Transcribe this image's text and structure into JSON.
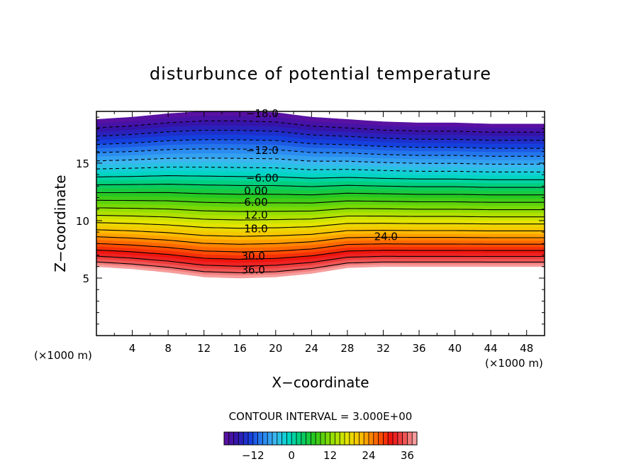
{
  "chart_data": {
    "type": "heatmap",
    "title": "disturbunce of potential temperature",
    "xlabel": "X−coordinate",
    "ylabel": "Z−coordinate",
    "x_unit_left": "(×1000 m)",
    "x_unit_right": "(×1000 m)",
    "xlim": [
      0,
      50
    ],
    "ylim": [
      0,
      19.5
    ],
    "x_ticks": [
      "4",
      "8",
      "12",
      "16",
      "20",
      "24",
      "28",
      "32",
      "36",
      "40",
      "44",
      "48"
    ],
    "y_ticks": [
      "5",
      "10",
      "15"
    ],
    "grid": false,
    "contour_interval_text": "CONTOUR INTERVAL = 3.000E+00",
    "contour_interval": 3.0,
    "value_range": [
      -21,
      39
    ],
    "colorbar": {
      "ticks": [
        "−12",
        "0",
        "12",
        "24",
        "36"
      ],
      "tick_values": [
        -12,
        0,
        12,
        24,
        36
      ]
    },
    "contour_labels": [
      {
        "text": "−18.0",
        "value": -18,
        "x": 18.5,
        "z": 19.3
      },
      {
        "text": "−12.0",
        "value": -12,
        "x": 18.5,
        "z": 16.1
      },
      {
        "text": "−6.00",
        "value": -6,
        "x": 18.5,
        "z": 13.7
      },
      {
        "text": "0.00",
        "value": 0,
        "x": 17.8,
        "z": 12.6
      },
      {
        "text": "6.00",
        "value": 6,
        "x": 17.8,
        "z": 11.6
      },
      {
        "text": "12.0",
        "value": 12,
        "x": 17.8,
        "z": 10.5
      },
      {
        "text": "18.0",
        "value": 18,
        "x": 17.8,
        "z": 9.3
      },
      {
        "text": "24.0",
        "value": 24,
        "x": 32.3,
        "z": 8.6
      },
      {
        "text": "30.0",
        "value": 30,
        "x": 17.5,
        "z": 6.9
      },
      {
        "text": "36.0",
        "value": 36,
        "x": 17.5,
        "z": 5.7
      }
    ],
    "field_description": {
      "top_profile": [
        [
          0,
          18.8
        ],
        [
          4,
          19.0
        ],
        [
          8,
          19.3
        ],
        [
          12,
          19.5
        ],
        [
          16,
          19.5
        ],
        [
          20,
          19.4
        ],
        [
          24,
          19.0
        ],
        [
          28,
          18.8
        ],
        [
          32,
          18.6
        ],
        [
          36,
          18.5
        ],
        [
          40,
          18.5
        ],
        [
          44,
          18.4
        ],
        [
          50,
          18.4
        ]
      ],
      "bottom_profile": [
        [
          0,
          6.0
        ],
        [
          4,
          5.8
        ],
        [
          8,
          5.5
        ],
        [
          12,
          5.1
        ],
        [
          16,
          5.0
        ],
        [
          20,
          5.1
        ],
        [
          24,
          5.4
        ],
        [
          28,
          5.9
        ],
        [
          32,
          6.0
        ],
        [
          36,
          6.0
        ],
        [
          40,
          6.0
        ],
        [
          44,
          6.0
        ],
        [
          50,
          6.0
        ]
      ]
    }
  }
}
